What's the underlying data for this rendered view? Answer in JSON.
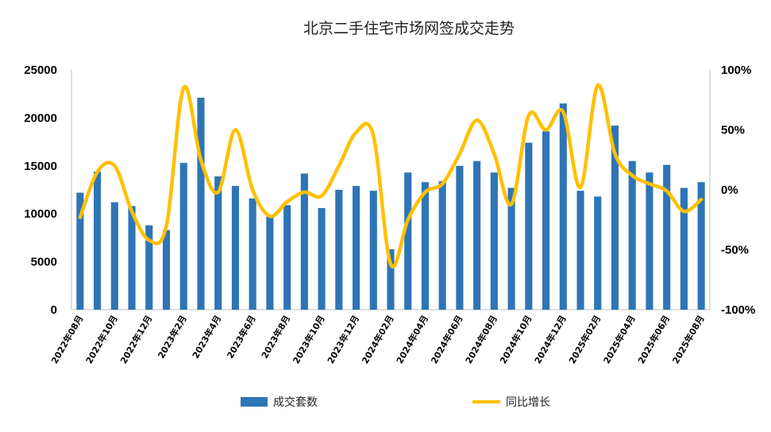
{
  "chart_data": {
    "type": "bar",
    "title": "北京二手住宅市场网签成交走势",
    "x": [
      "2022年08月",
      "2022年09月",
      "2022年10月",
      "2022年11月",
      "2022年12月",
      "2023年1月",
      "2023年2月",
      "2023年3月",
      "2023年4月",
      "2023年5月",
      "2023年6月",
      "2023年7月",
      "2023年8月",
      "2023年9月",
      "2023年10月",
      "2023年11月",
      "2023年12月",
      "2024年01月",
      "2024年02月",
      "2024年03月",
      "2024年04月",
      "2024年05月",
      "2024年06月",
      "2024年07月",
      "2024年08月",
      "2024年09月",
      "2024年10月",
      "2024年11月",
      "2024年12月",
      "2025年01月",
      "2025年02月",
      "2025年03月",
      "2025年04月",
      "2025年05月",
      "2025年06月",
      "2025年07月",
      "2025年08月"
    ],
    "x_tick_labels": [
      "2022年08月",
      "2022年10月",
      "2022年12月",
      "2023年2月",
      "2023年4月",
      "2023年6月",
      "2023年8月",
      "2023年10月",
      "2023年12月",
      "2024年02月",
      "2024年04月",
      "2024年06月",
      "2024年08月",
      "2024年10月",
      "2024年12月",
      "2025年02月",
      "2025年04月",
      "2025年06月",
      "2025年08月"
    ],
    "series": [
      {
        "name": "成交套数",
        "type": "bar",
        "axis": "left",
        "color": "#2e75b6",
        "values": [
          12200,
          14400,
          11200,
          10800,
          8800,
          8300,
          15300,
          22100,
          13900,
          12900,
          11600,
          9700,
          10900,
          14200,
          10600,
          12500,
          12900,
          12400,
          6300,
          14300,
          13300,
          13400,
          15000,
          15500,
          14300,
          12700,
          17400,
          18600,
          21500,
          12400,
          11800,
          19200,
          15500,
          14300,
          15100,
          12700,
          13300
        ]
      },
      {
        "name": "同比增长",
        "type": "line",
        "axis": "right",
        "color": "#ffc000",
        "values": [
          -23,
          15,
          20,
          -18,
          -42,
          -30,
          85,
          25,
          -2,
          50,
          0,
          -22,
          -10,
          -2,
          -5,
          20,
          48,
          45,
          -62,
          -25,
          -2,
          5,
          30,
          58,
          30,
          -12,
          62,
          50,
          65,
          2,
          87,
          30,
          12,
          5,
          -1,
          -18,
          -8
        ]
      }
    ],
    "left_axis": {
      "min": 0,
      "max": 25000,
      "ticks": [
        "0",
        "5000",
        "10000",
        "15000",
        "20000",
        "25000"
      ]
    },
    "right_axis": {
      "min": -100,
      "max": 100,
      "ticks": [
        "-100%",
        "-50%",
        "0%",
        "50%",
        "100%"
      ]
    },
    "grid": false,
    "legend_position": "bottom"
  }
}
